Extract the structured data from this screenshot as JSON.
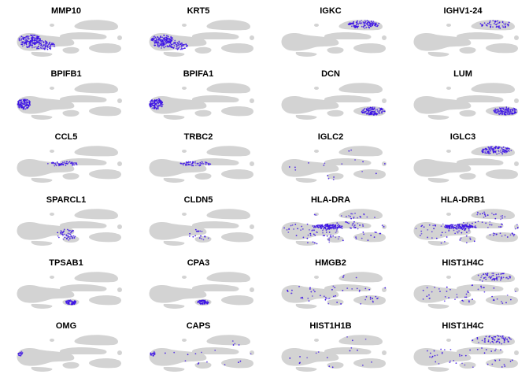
{
  "figure": {
    "background_color": "#ffffff",
    "base_color": "#d3d3d3",
    "expression_color": "#3a10e5"
  },
  "chart_data": {
    "type": "scatter",
    "description_type": "umap_feature_plot_grid",
    "rows": 6,
    "cols": 4,
    "panels": [
      {
        "title": "MMP10",
        "highlight_regions": [
          "left_cluster_lower",
          "left_cluster_mid"
        ],
        "intensity": "high"
      },
      {
        "title": "KRT5",
        "highlight_regions": [
          "left_cluster_lower",
          "left_cluster_mid"
        ],
        "intensity": "high"
      },
      {
        "title": "IGKC",
        "highlight_regions": [
          "upper_right_cluster"
        ],
        "intensity": "high"
      },
      {
        "title": "IGHV1-24",
        "highlight_regions": [
          "upper_right_cluster"
        ],
        "intensity": "medium"
      },
      {
        "title": "BPIFB1",
        "highlight_regions": [
          "left_tip"
        ],
        "intensity": "high"
      },
      {
        "title": "BPIFA1",
        "highlight_regions": [
          "left_tip"
        ],
        "intensity": "high"
      },
      {
        "title": "DCN",
        "highlight_regions": [
          "lower_right_cluster"
        ],
        "intensity": "high"
      },
      {
        "title": "LUM",
        "highlight_regions": [
          "lower_right_cluster"
        ],
        "intensity": "high"
      },
      {
        "title": "CCL5",
        "highlight_regions": [
          "middle_band"
        ],
        "intensity": "medium"
      },
      {
        "title": "TRBC2",
        "highlight_regions": [
          "middle_band"
        ],
        "intensity": "medium"
      },
      {
        "title": "IGLC2",
        "highlight_regions": [
          "scattered_sparse"
        ],
        "intensity": "low"
      },
      {
        "title": "IGLC3",
        "highlight_regions": [
          "upper_right_cluster"
        ],
        "intensity": "high"
      },
      {
        "title": "SPARCL1",
        "highlight_regions": [
          "center_lower"
        ],
        "intensity": "medium"
      },
      {
        "title": "CLDN5",
        "highlight_regions": [
          "center_lower"
        ],
        "intensity": "low"
      },
      {
        "title": "HLA-DRA",
        "highlight_regions": [
          "middle_band",
          "scattered_wide"
        ],
        "intensity": "high"
      },
      {
        "title": "HLA-DRB1",
        "highlight_regions": [
          "middle_band",
          "scattered_wide"
        ],
        "intensity": "high"
      },
      {
        "title": "TPSAB1",
        "highlight_regions": [
          "center_spot"
        ],
        "intensity": "medium"
      },
      {
        "title": "CPA3",
        "highlight_regions": [
          "center_spot"
        ],
        "intensity": "medium"
      },
      {
        "title": "HMGB2",
        "highlight_regions": [
          "scattered_wide"
        ],
        "intensity": "medium"
      },
      {
        "title": "HIST1H4C",
        "highlight_regions": [
          "scattered_wide",
          "upper_right_cluster"
        ],
        "intensity": "medium"
      },
      {
        "title": "OMG",
        "highlight_regions": [
          "left_tip_small"
        ],
        "intensity": "low"
      },
      {
        "title": "CAPS",
        "highlight_regions": [
          "left_tip_small",
          "scattered_sparse"
        ],
        "intensity": "low"
      },
      {
        "title": "HIST1H1B",
        "highlight_regions": [
          "scattered_sparse"
        ],
        "intensity": "low"
      },
      {
        "title": "HIST1H4C",
        "highlight_regions": [
          "scattered_wide",
          "upper_right_cluster"
        ],
        "intensity": "medium"
      }
    ]
  }
}
